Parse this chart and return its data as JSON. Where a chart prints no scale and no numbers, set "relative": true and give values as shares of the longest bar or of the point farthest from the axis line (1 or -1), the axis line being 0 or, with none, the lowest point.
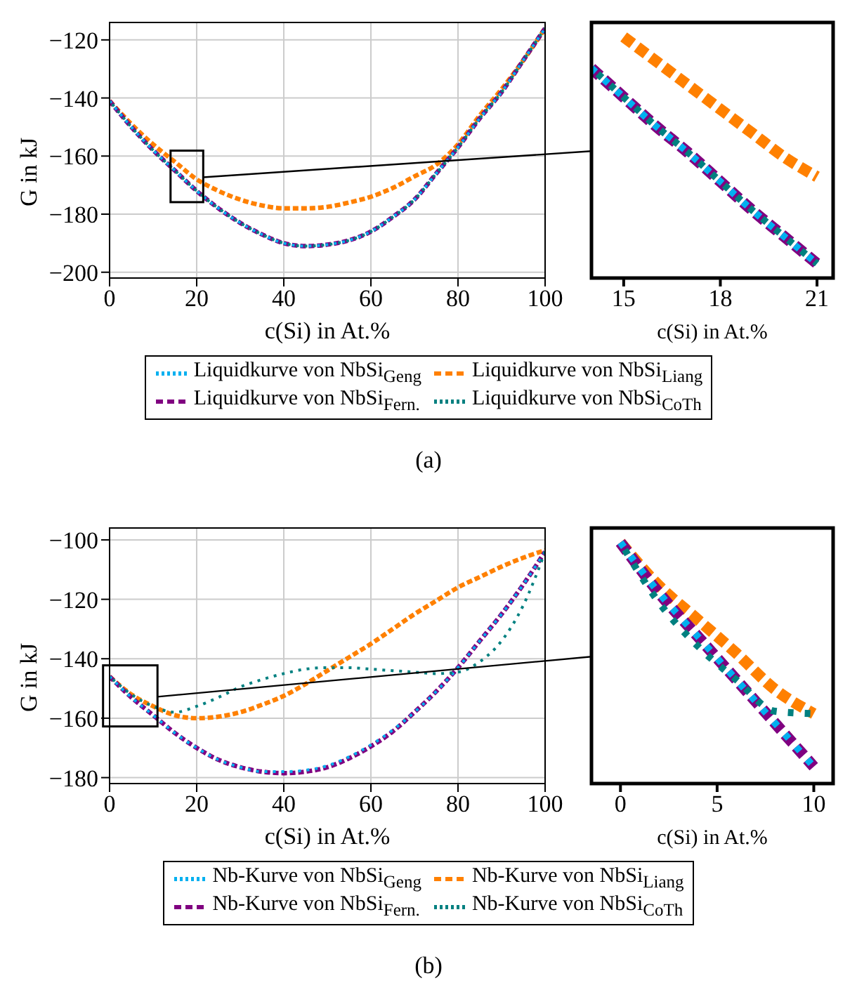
{
  "chart_data": [
    {
      "type": "line",
      "xlabel": "c(Si) in At.%",
      "ylabel": "G in kJ",
      "xlim": [
        0,
        100
      ],
      "xticks": [
        0,
        20,
        40,
        60,
        80,
        100
      ],
      "ylim": [
        -202,
        -114
      ],
      "yticks": [
        -200,
        -180,
        -160,
        -140,
        -120
      ],
      "grid": true,
      "legend": "bottom",
      "annotations": [
        "(a)"
      ],
      "x": [
        0,
        5,
        10,
        15,
        20,
        25,
        30,
        35,
        40,
        45,
        50,
        55,
        60,
        65,
        70,
        75,
        80,
        85,
        90,
        95,
        100
      ],
      "series": [
        {
          "name": "Liquidkurve von NbSi$_{Geng}$",
          "color": "#00b0f0",
          "line_style": "dotted",
          "values": [
            -141,
            -150,
            -158,
            -165,
            -172,
            -178,
            -183,
            -187,
            -190,
            -191,
            -190.5,
            -189,
            -186,
            -181,
            -175,
            -166,
            -157,
            -147,
            -138,
            -127,
            -116
          ]
        },
        {
          "name": "Liquidkurve von NbSi$_{Liang}$",
          "color": "#ff8000",
          "line_style": "dashed",
          "values": [
            -141,
            -149,
            -156,
            -162,
            -168,
            -172,
            -175,
            -177,
            -178,
            -178,
            -177.5,
            -176,
            -174,
            -171,
            -167,
            -163,
            -156,
            -146,
            -137,
            -127,
            -116
          ]
        },
        {
          "name": "Liquidkurve von NbSi$_{Fern.}$",
          "color": "#800080",
          "line_style": "dashed",
          "values": [
            -141,
            -150,
            -158,
            -165,
            -172,
            -178,
            -183,
            -187,
            -190,
            -191,
            -190.5,
            -189,
            -186,
            -181,
            -175,
            -166,
            -157,
            -147,
            -138,
            -127,
            -116
          ]
        },
        {
          "name": "Liquidkurve von NbSi$_{CoTh}$",
          "color": "#008080",
          "line_style": "dotted",
          "values": [
            -141,
            -150,
            -158,
            -165,
            -172,
            -178,
            -183,
            -187,
            -190,
            -191,
            -190.5,
            -189,
            -186,
            -181,
            -175,
            -166,
            -157,
            -147,
            -138,
            -127,
            -116
          ]
        }
      ]
    },
    {
      "type": "line",
      "xlabel": "c(Si) in At.%",
      "xlim": [
        14,
        21.5
      ],
      "xticks": [
        15,
        18,
        21
      ],
      "relative": true,
      "tick_labels": "x",
      "x": [
        14,
        15,
        16,
        17,
        18,
        19,
        20,
        21
      ],
      "series": [
        {
          "color": "#00b0f0",
          "line_style": "dotted",
          "values": [
            0.87,
            0.75,
            0.63,
            0.52,
            0.4,
            0.28,
            0.17,
            0.06
          ]
        },
        {
          "color": "#ff8000",
          "line_style": "dashed",
          "values": [
            null,
            1,
            0.9,
            0.8,
            0.7,
            0.6,
            0.5,
            0.42
          ]
        },
        {
          "color": "#800080",
          "line_style": "dashed",
          "values": [
            0.87,
            0.75,
            0.63,
            0.52,
            0.4,
            0.28,
            0.17,
            0.06
          ]
        },
        {
          "color": "#008080",
          "line_style": "dotted",
          "values": [
            0.87,
            0.75,
            0.63,
            0.52,
            0.4,
            0.28,
            0.17,
            0.06
          ]
        }
      ]
    },
    {
      "type": "line",
      "xlabel": "c(Si) in At.%",
      "ylabel": "G in kJ",
      "xlim": [
        0,
        100
      ],
      "xticks": [
        0,
        20,
        40,
        60,
        80,
        100
      ],
      "ylim": [
        -182,
        -96
      ],
      "yticks": [
        -180,
        -160,
        -140,
        -120,
        -100
      ],
      "grid": true,
      "legend": "bottom",
      "annotations": [
        "(b)"
      ],
      "x": [
        0,
        5,
        10,
        15,
        20,
        25,
        30,
        35,
        40,
        45,
        50,
        55,
        60,
        65,
        70,
        75,
        80,
        85,
        90,
        95,
        100
      ],
      "series": [
        {
          "name": "Nb-Kurve von NbSi$_{Geng}$",
          "color": "#00b0f0",
          "line_style": "dotted",
          "values": [
            -146,
            -153,
            -159,
            -165,
            -170,
            -174,
            -176.5,
            -178,
            -178,
            -177.5,
            -176,
            -173,
            -169,
            -164,
            -158,
            -151,
            -143,
            -134,
            -125,
            -115,
            -104
          ]
        },
        {
          "name": "Nb-Kurve von NbSi$_{Liang}$",
          "color": "#ff8000",
          "line_style": "dashed",
          "values": [
            -146,
            -152,
            -156,
            -159,
            -160,
            -159.5,
            -158,
            -155.5,
            -152.5,
            -148.5,
            -144,
            -139.5,
            -135,
            -130,
            -125,
            -120.5,
            -116,
            -112.5,
            -109,
            -106,
            -103.5
          ]
        },
        {
          "name": "Nb-Kurve von NbSi$_{Fern.}$",
          "color": "#800080",
          "line_style": "dashed",
          "values": [
            -146,
            -153,
            -159,
            -165,
            -170,
            -174,
            -176.5,
            -178,
            -178.5,
            -178,
            -176.5,
            -173.5,
            -169.5,
            -164.5,
            -158,
            -151,
            -143,
            -134,
            -125,
            -115,
            -104
          ]
        },
        {
          "name": "Nb-Kurve von NbSi$_{CoTh}$",
          "color": "#008080",
          "line_style": "dotted",
          "values": [
            -146,
            -152,
            -156,
            -158,
            -156,
            -153,
            -149.5,
            -147,
            -145,
            -143.5,
            -143,
            -143,
            -143.5,
            -144,
            -144.5,
            -145,
            -144.5,
            -141,
            -134,
            -122,
            -104
          ]
        }
      ]
    },
    {
      "type": "line",
      "xlabel": "c(Si) in At.%",
      "xlim": [
        -1.5,
        11
      ],
      "xticks": [
        0,
        5,
        10
      ],
      "relative": true,
      "tick_labels": "x",
      "x": [
        0,
        2,
        4,
        6,
        8,
        10
      ],
      "series": [
        {
          "color": "#00b0f0",
          "line_style": "dotted",
          "values": [
            1,
            0.79,
            0.61,
            0.43,
            0.25,
            0.07
          ]
        },
        {
          "color": "#ff8000",
          "line_style": "dashed",
          "values": [
            1,
            0.82,
            0.68,
            0.54,
            0.39,
            0.29
          ]
        },
        {
          "color": "#800080",
          "line_style": "dashed",
          "values": [
            1,
            0.79,
            0.61,
            0.43,
            0.25,
            0.07
          ]
        },
        {
          "color": "#008080",
          "line_style": "dotted",
          "values": [
            1,
            0.75,
            0.57,
            0.43,
            0.3,
            0.29
          ]
        }
      ]
    }
  ]
}
